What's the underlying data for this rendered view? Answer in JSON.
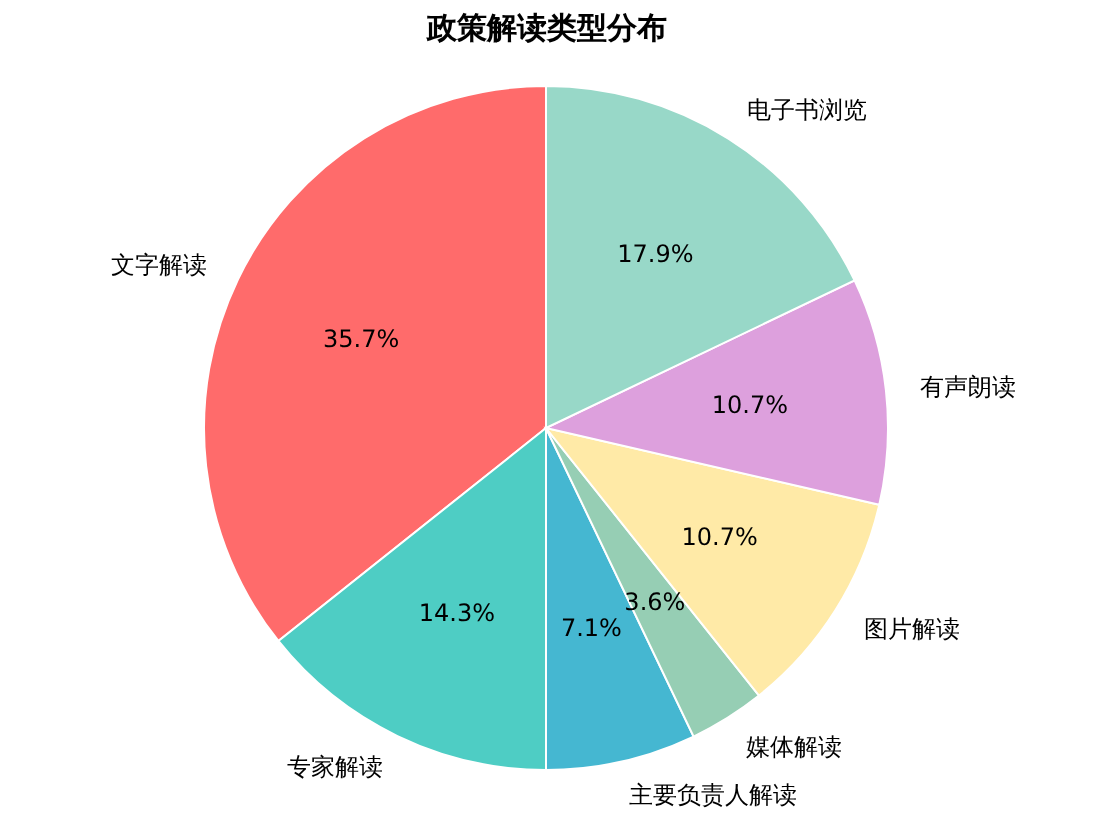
{
  "chart_data": {
    "type": "pie",
    "title": "政策解读类型分布",
    "categories": [
      "文字解读",
      "专家解读",
      "主要负责人解读",
      "媒体解读",
      "图片解读",
      "有声朗读",
      "电子书浏览"
    ],
    "values": [
      35.7,
      14.3,
      7.1,
      3.6,
      10.7,
      10.7,
      17.9
    ],
    "value_labels": [
      "35.7%",
      "14.3%",
      "7.1%",
      "3.6%",
      "10.7%",
      "10.7%",
      "17.9%"
    ],
    "colors": [
      "#ff6b6b",
      "#4ecdc4",
      "#45b7d1",
      "#96ceb4",
      "#ffeaa7",
      "#dda0dd",
      "#98d8c8"
    ],
    "legend": false
  }
}
